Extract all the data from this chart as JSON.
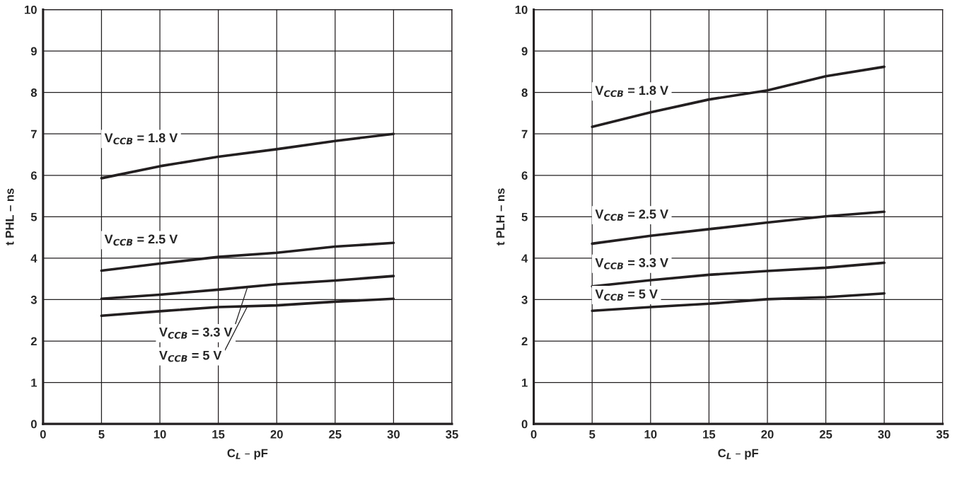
{
  "chart_data": [
    {
      "type": "line",
      "xlabel": "C$_{L}$ – pF",
      "ylabel": "t PHL – ns",
      "x": [
        5,
        10,
        15,
        20,
        25,
        30
      ],
      "xlim": [
        0,
        35
      ],
      "xticks": [
        0,
        5,
        10,
        15,
        20,
        25,
        30,
        35
      ],
      "ylim": [
        0,
        10
      ],
      "yticks": [
        0,
        1,
        2,
        3,
        4,
        5,
        6,
        7,
        8,
        9,
        10
      ],
      "grid": true,
      "legend": false,
      "marker": "none",
      "line_style": "solid",
      "series": [
        {
          "name": "V$_{CCB}$ = 1.8 V",
          "color": "#231f20",
          "values": [
            5.93,
            6.22,
            6.45,
            6.63,
            6.83,
            7.0
          ]
        },
        {
          "name": "V$_{CCB}$ = 2.5 V",
          "color": "#231f20",
          "values": [
            3.7,
            3.87,
            4.03,
            4.13,
            4.28,
            4.37
          ]
        },
        {
          "name": "V$_{CCB}$ = 3.3 V",
          "color": "#231f20",
          "values": [
            3.02,
            3.12,
            3.24,
            3.37,
            3.46,
            3.57
          ]
        },
        {
          "name": "V$_{CCB}$ = 5 V",
          "color": "#231f20",
          "values": [
            2.61,
            2.72,
            2.82,
            2.86,
            2.95,
            3.02
          ]
        }
      ]
    },
    {
      "type": "line",
      "xlabel": "C$_{L}$ – pF",
      "ylabel": "t PLH – ns",
      "x": [
        5,
        10,
        15,
        20,
        25,
        30
      ],
      "xlim": [
        0,
        35
      ],
      "xticks": [
        0,
        5,
        10,
        15,
        20,
        25,
        30,
        35
      ],
      "ylim": [
        0,
        10
      ],
      "yticks": [
        0,
        1,
        2,
        3,
        4,
        5,
        6,
        7,
        8,
        9,
        10
      ],
      "grid": true,
      "legend": false,
      "marker": "none",
      "line_style": "solid",
      "series": [
        {
          "name": "V$_{CCB}$ = 1.8 V",
          "color": "#231f20",
          "values": [
            7.17,
            7.52,
            7.83,
            8.05,
            8.39,
            8.62
          ]
        },
        {
          "name": "V$_{CCB}$ = 2.5 V",
          "color": "#231f20",
          "values": [
            4.35,
            4.54,
            4.7,
            4.86,
            5.01,
            5.12
          ]
        },
        {
          "name": "V$_{CCB}$ = 3.3 V",
          "color": "#231f20",
          "values": [
            3.32,
            3.47,
            3.6,
            3.69,
            3.77,
            3.89
          ]
        },
        {
          "name": "V$_{CCB}$ = 5 V",
          "color": "#231f20",
          "values": [
            2.73,
            2.82,
            2.9,
            3.01,
            3.06,
            3.15
          ]
        }
      ]
    }
  ]
}
